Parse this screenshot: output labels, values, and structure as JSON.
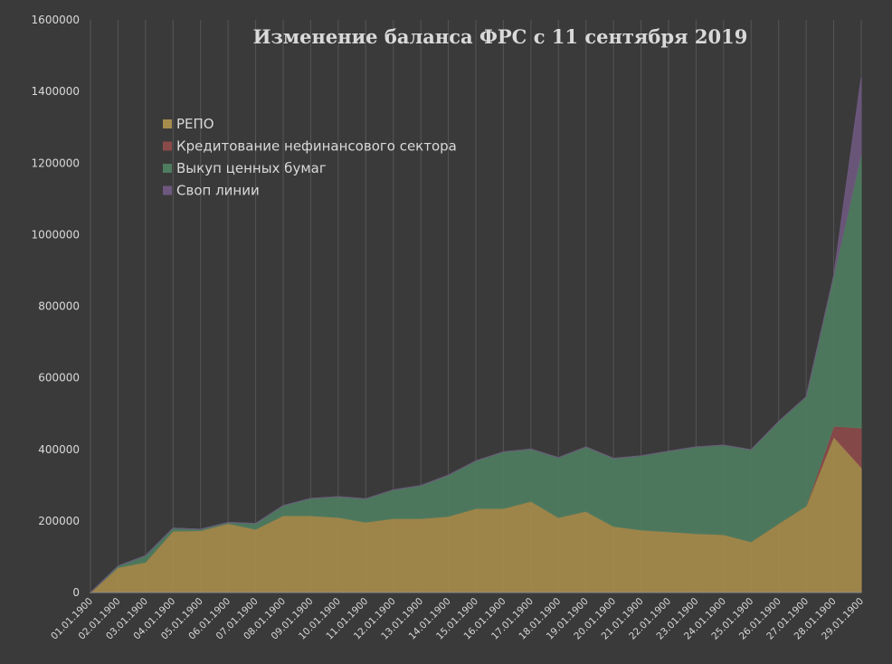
{
  "chart_data": {
    "type": "area",
    "stacked": true,
    "title": "Изменение баланса ФРС с 11 сентября 2019",
    "xlabel": "",
    "ylabel": "",
    "ylim": [
      0,
      1600000
    ],
    "yticks": [
      0,
      200000,
      400000,
      600000,
      800000,
      1000000,
      1200000,
      1400000,
      1600000
    ],
    "grid": true,
    "legend_position": "top-left",
    "categories": [
      "01.01.1900",
      "02.01.1900",
      "03.01.1900",
      "04.01.1900",
      "05.01.1900",
      "06.01.1900",
      "07.01.1900",
      "08.01.1900",
      "09.01.1900",
      "10.01.1900",
      "11.01.1900",
      "12.01.1900",
      "13.01.1900",
      "14.01.1900",
      "15.01.1900",
      "16.01.1900",
      "17.01.1900",
      "18.01.1900",
      "19.01.1900",
      "20.01.1900",
      "21.01.1900",
      "22.01.1900",
      "23.01.1900",
      "24.01.1900",
      "25.01.1900",
      "26.01.1900",
      "27.01.1900",
      "28.01.1900",
      "29.01.1900"
    ],
    "series": [
      {
        "name": "РЕПО",
        "color": "#a68c4c",
        "values": [
          0,
          70000,
          85000,
          172000,
          173000,
          193000,
          177000,
          215000,
          215000,
          210000,
          197000,
          207000,
          207000,
          213000,
          235000,
          235000,
          255000,
          210000,
          227000,
          185000,
          175000,
          170000,
          165000,
          162000,
          142000,
          193000,
          242000,
          435000,
          350000
        ]
      },
      {
        "name": "Кредитование нефинансового сектора",
        "color": "#8b4a4a",
        "values": [
          0,
          0,
          0,
          0,
          0,
          0,
          0,
          0,
          0,
          0,
          0,
          0,
          0,
          0,
          0,
          0,
          0,
          0,
          0,
          0,
          0,
          0,
          0,
          0,
          0,
          0,
          0,
          30000,
          110000
        ]
      },
      {
        "name": "Выкуп ценных бумаг",
        "color": "#4e7d5f",
        "values": [
          0,
          4000,
          18000,
          8000,
          4000,
          3000,
          16000,
          28000,
          48000,
          58000,
          65000,
          80000,
          92000,
          115000,
          133000,
          158000,
          146000,
          167000,
          180000,
          190000,
          207000,
          225000,
          242000,
          250000,
          257000,
          285000,
          305000,
          420000,
          765000
        ]
      },
      {
        "name": "Своп линии",
        "color": "#6e587e",
        "values": [
          0,
          0,
          0,
          0,
          0,
          0,
          0,
          0,
          0,
          0,
          0,
          0,
          0,
          0,
          0,
          0,
          0,
          0,
          0,
          0,
          0,
          0,
          0,
          0,
          0,
          0,
          0,
          0,
          215000
        ]
      }
    ]
  }
}
